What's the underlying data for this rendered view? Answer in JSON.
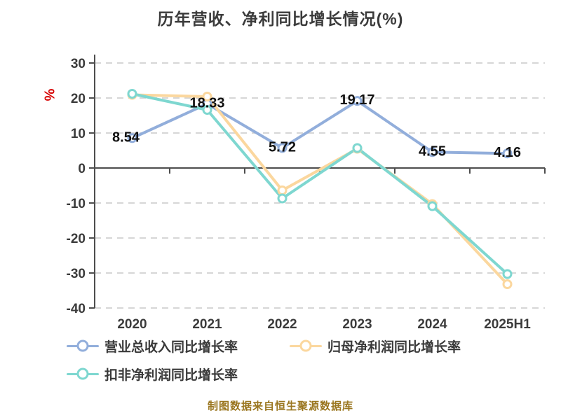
{
  "source_note": "制图数据来自恒生聚源数据库",
  "colors": {
    "title_text": "#3b3b3b",
    "axis_line": "#4d4d4d",
    "tick_label": "#3b3b3b",
    "gridline": "#d6d6d6",
    "data_label": "#111111",
    "y_unit_red": "#d60000",
    "source_note": "#9a761f",
    "background": "#ffffff"
  },
  "chart_data": {
    "type": "line",
    "title": "历年营收、净利同比增长情况(%)",
    "ylabel": "%",
    "xlabel": "",
    "categories": [
      "2020",
      "2021",
      "2022",
      "2023",
      "2024",
      "2025H1"
    ],
    "ylim": [
      -40,
      30
    ],
    "yticks": [
      30,
      20,
      10,
      0,
      -10,
      -20,
      -30,
      -40
    ],
    "grid": "horizontal-dashed",
    "legend_position": "bottom",
    "series": [
      {
        "name": "营业总收入同比增长率",
        "color": "#92aedb",
        "values": [
          8.54,
          18.33,
          5.72,
          19.17,
          4.55,
          4.16
        ],
        "data_labels": [
          "8.54",
          "18.33",
          "5.72",
          "19.17",
          "4.55",
          "4.16"
        ]
      },
      {
        "name": "归母净利润同比增长率",
        "color": "#fbd79e",
        "values": [
          20.9,
          20.4,
          -6.4,
          5.5,
          -10.3,
          -33.2
        ],
        "data_labels": null
      },
      {
        "name": "扣非净利润同比增长率",
        "color": "#7ed7d0",
        "values": [
          21.2,
          16.6,
          -8.7,
          5.7,
          -10.9,
          -30.3
        ],
        "data_labels": null
      }
    ]
  }
}
